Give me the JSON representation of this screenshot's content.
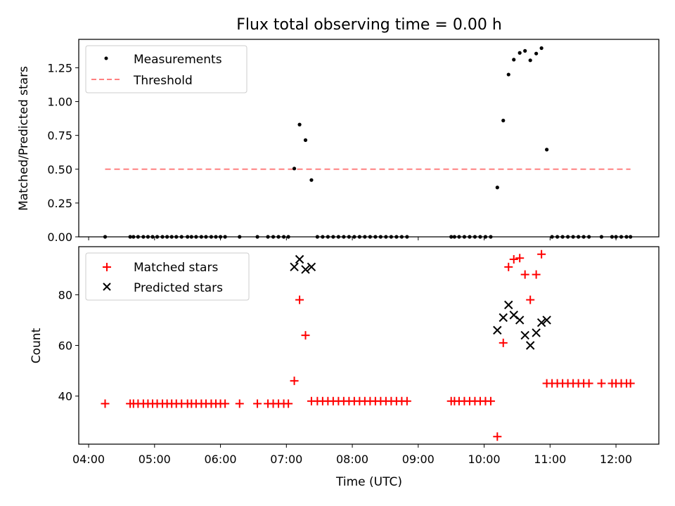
{
  "chart_data": [
    {
      "type": "scatter",
      "title": "Flux total observing time = 0.00 h",
      "ylabel": "Matched/Predicted stars",
      "xlabel": "",
      "x_unit": "decimal hours UTC",
      "xlim": [
        3.85,
        12.65
      ],
      "ylim": [
        0,
        1.46
      ],
      "yticks": [
        0.0,
        0.25,
        0.5,
        0.75,
        1.0,
        1.25
      ],
      "ytick_labels": [
        "0.00",
        "0.25",
        "0.50",
        "0.75",
        "1.00",
        "1.25"
      ],
      "legend": {
        "position": "top-left",
        "entries": [
          "Measurements",
          "Threshold"
        ]
      },
      "series": [
        {
          "name": "Measurements",
          "style": "dot",
          "color": "#000000",
          "points": [
            [
              4.25,
              0
            ],
            [
              4.63,
              0
            ],
            [
              4.68,
              0
            ],
            [
              4.75,
              0
            ],
            [
              4.83,
              0
            ],
            [
              4.9,
              0
            ],
            [
              4.97,
              0
            ],
            [
              5.04,
              0
            ],
            [
              5.12,
              0
            ],
            [
              5.19,
              0
            ],
            [
              5.26,
              0
            ],
            [
              5.33,
              0
            ],
            [
              5.41,
              0
            ],
            [
              5.5,
              0
            ],
            [
              5.56,
              0
            ],
            [
              5.63,
              0
            ],
            [
              5.71,
              0
            ],
            [
              5.78,
              0
            ],
            [
              5.86,
              0
            ],
            [
              5.93,
              0
            ],
            [
              6.0,
              0
            ],
            [
              6.07,
              0
            ],
            [
              6.29,
              0
            ],
            [
              6.56,
              0
            ],
            [
              6.72,
              0
            ],
            [
              6.8,
              0
            ],
            [
              6.88,
              0
            ],
            [
              6.96,
              0
            ],
            [
              7.03,
              0
            ],
            [
              7.12,
              0.505
            ],
            [
              7.2,
              0.83
            ],
            [
              7.29,
              0.715
            ],
            [
              7.38,
              0.42
            ],
            [
              7.47,
              0
            ],
            [
              7.55,
              0
            ],
            [
              7.63,
              0
            ],
            [
              7.71,
              0
            ],
            [
              7.79,
              0
            ],
            [
              7.87,
              0
            ],
            [
              7.95,
              0
            ],
            [
              8.03,
              0
            ],
            [
              8.11,
              0
            ],
            [
              8.19,
              0
            ],
            [
              8.27,
              0
            ],
            [
              8.35,
              0
            ],
            [
              8.43,
              0
            ],
            [
              8.51,
              0
            ],
            [
              8.59,
              0
            ],
            [
              8.67,
              0
            ],
            [
              8.75,
              0
            ],
            [
              8.83,
              0
            ],
            [
              9.5,
              0
            ],
            [
              9.55,
              0
            ],
            [
              9.62,
              0
            ],
            [
              9.7,
              0
            ],
            [
              9.78,
              0
            ],
            [
              9.86,
              0
            ],
            [
              9.94,
              0
            ],
            [
              10.02,
              0
            ],
            [
              10.1,
              0
            ],
            [
              10.2,
              0.365
            ],
            [
              10.29,
              0.86
            ],
            [
              10.37,
              1.2
            ],
            [
              10.45,
              1.31
            ],
            [
              10.54,
              1.36
            ],
            [
              10.62,
              1.375
            ],
            [
              10.7,
              1.305
            ],
            [
              10.79,
              1.355
            ],
            [
              10.87,
              1.395
            ],
            [
              10.95,
              0.645
            ],
            [
              11.03,
              0
            ],
            [
              11.11,
              0
            ],
            [
              11.19,
              0
            ],
            [
              11.27,
              0
            ],
            [
              11.35,
              0
            ],
            [
              11.43,
              0
            ],
            [
              11.51,
              0
            ],
            [
              11.59,
              0
            ],
            [
              11.78,
              0
            ],
            [
              11.94,
              0
            ],
            [
              12.0,
              0
            ],
            [
              12.08,
              0
            ],
            [
              12.16,
              0
            ],
            [
              12.22,
              0
            ]
          ]
        },
        {
          "name": "Threshold",
          "style": "dashed-line",
          "color": "#ff8080",
          "points": [
            [
              4.25,
              0.5
            ],
            [
              12.22,
              0.5
            ]
          ]
        }
      ]
    },
    {
      "type": "scatter",
      "title": "",
      "ylabel": "Count",
      "xlabel": "Time (UTC)",
      "x_unit": "decimal hours UTC",
      "xlim": [
        3.85,
        12.65
      ],
      "ylim": [
        21,
        99
      ],
      "yticks": [
        40,
        60,
        80
      ],
      "ytick_labels": [
        "40",
        "60",
        "80"
      ],
      "xticks": [
        4,
        5,
        6,
        7,
        8,
        9,
        10,
        11,
        12
      ],
      "xtick_labels": [
        "04:00",
        "05:00",
        "06:00",
        "07:00",
        "08:00",
        "09:00",
        "10:00",
        "11:00",
        "12:00"
      ],
      "legend": {
        "position": "top-left",
        "entries": [
          "Matched stars",
          "Predicted stars"
        ]
      },
      "series": [
        {
          "name": "Matched stars",
          "style": "plus",
          "color": "#ff0000",
          "points": [
            [
              4.25,
              37
            ],
            [
              4.63,
              37
            ],
            [
              4.68,
              37
            ],
            [
              4.75,
              37
            ],
            [
              4.83,
              37
            ],
            [
              4.9,
              37
            ],
            [
              4.97,
              37
            ],
            [
              5.04,
              37
            ],
            [
              5.12,
              37
            ],
            [
              5.19,
              37
            ],
            [
              5.26,
              37
            ],
            [
              5.33,
              37
            ],
            [
              5.41,
              37
            ],
            [
              5.5,
              37
            ],
            [
              5.56,
              37
            ],
            [
              5.63,
              37
            ],
            [
              5.71,
              37
            ],
            [
              5.78,
              37
            ],
            [
              5.86,
              37
            ],
            [
              5.93,
              37
            ],
            [
              6.0,
              37
            ],
            [
              6.07,
              37
            ],
            [
              6.29,
              37
            ],
            [
              6.56,
              37
            ],
            [
              6.72,
              37
            ],
            [
              6.8,
              37
            ],
            [
              6.88,
              37
            ],
            [
              6.96,
              37
            ],
            [
              7.03,
              37
            ],
            [
              7.12,
              46
            ],
            [
              7.2,
              78
            ],
            [
              7.29,
              64
            ],
            [
              7.38,
              38
            ],
            [
              7.47,
              38
            ],
            [
              7.55,
              38
            ],
            [
              7.63,
              38
            ],
            [
              7.71,
              38
            ],
            [
              7.79,
              38
            ],
            [
              7.87,
              38
            ],
            [
              7.95,
              38
            ],
            [
              8.03,
              38
            ],
            [
              8.11,
              38
            ],
            [
              8.19,
              38
            ],
            [
              8.27,
              38
            ],
            [
              8.35,
              38
            ],
            [
              8.43,
              38
            ],
            [
              8.51,
              38
            ],
            [
              8.59,
              38
            ],
            [
              8.67,
              38
            ],
            [
              8.75,
              38
            ],
            [
              8.83,
              38
            ],
            [
              9.5,
              38
            ],
            [
              9.55,
              38
            ],
            [
              9.62,
              38
            ],
            [
              9.7,
              38
            ],
            [
              9.78,
              38
            ],
            [
              9.86,
              38
            ],
            [
              9.94,
              38
            ],
            [
              10.02,
              38
            ],
            [
              10.1,
              38
            ],
            [
              10.2,
              24
            ],
            [
              10.29,
              61
            ],
            [
              10.37,
              91
            ],
            [
              10.45,
              94
            ],
            [
              10.54,
              94.5
            ],
            [
              10.62,
              88
            ],
            [
              10.7,
              78
            ],
            [
              10.79,
              88
            ],
            [
              10.87,
              96
            ],
            [
              10.95,
              45
            ],
            [
              11.03,
              45
            ],
            [
              11.11,
              45
            ],
            [
              11.19,
              45
            ],
            [
              11.27,
              45
            ],
            [
              11.35,
              45
            ],
            [
              11.43,
              45
            ],
            [
              11.51,
              45
            ],
            [
              11.59,
              45
            ],
            [
              11.78,
              45
            ],
            [
              11.94,
              45
            ],
            [
              12.0,
              45
            ],
            [
              12.08,
              45
            ],
            [
              12.16,
              45
            ],
            [
              12.22,
              45
            ]
          ]
        },
        {
          "name": "Predicted stars",
          "style": "x",
          "color": "#000000",
          "points": [
            [
              7.12,
              91
            ],
            [
              7.2,
              94
            ],
            [
              7.29,
              90
            ],
            [
              7.38,
              91
            ],
            [
              10.2,
              66
            ],
            [
              10.29,
              71
            ],
            [
              10.37,
              76
            ],
            [
              10.45,
              72
            ],
            [
              10.54,
              70
            ],
            [
              10.62,
              64
            ],
            [
              10.7,
              60
            ],
            [
              10.79,
              65
            ],
            [
              10.87,
              69
            ],
            [
              10.95,
              70
            ]
          ]
        }
      ]
    }
  ]
}
